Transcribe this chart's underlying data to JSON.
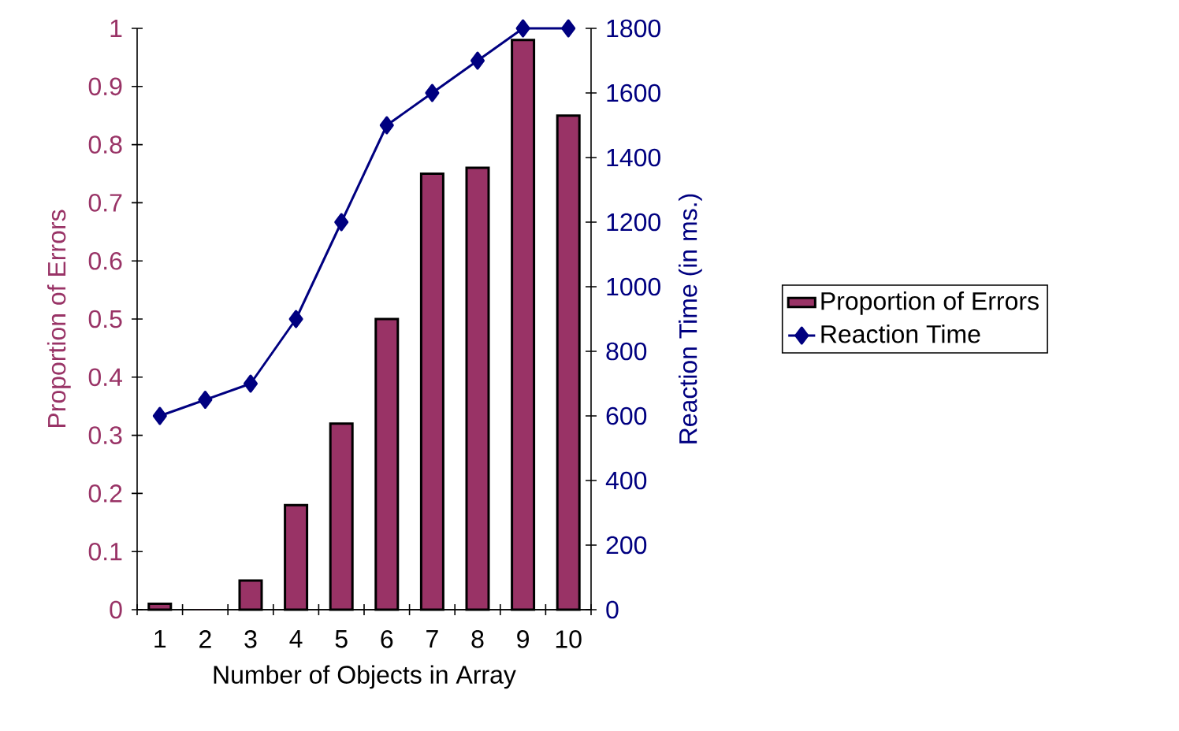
{
  "chart_data": {
    "type": "bar",
    "xlabel": "Number of Objects in Array",
    "ylabel": "Proportion of Errors",
    "y2label": "Reaction Time (in ms.)",
    "categories": [
      "1",
      "2",
      "3",
      "4",
      "5",
      "6",
      "7",
      "8",
      "9",
      "10"
    ],
    "series": [
      {
        "name": "Proportion of Errors",
        "color": "#993366",
        "values": [
          0.01,
          0,
          0.05,
          0.18,
          0.32,
          0.5,
          0.75,
          0.76,
          0.98,
          0.85
        ]
      },
      {
        "name": "Reaction Time",
        "type": "line",
        "axis": "y2",
        "color": "#000080",
        "marker": "diamond",
        "values": [
          600,
          650,
          700,
          900,
          1200,
          1500,
          1600,
          1700,
          1800,
          1800
        ]
      }
    ],
    "ylim": [
      0,
      1
    ],
    "yticks": [
      0,
      0.1,
      0.2,
      0.3,
      0.4,
      0.5,
      0.6,
      0.7,
      0.8,
      0.9,
      1
    ],
    "y2lim": [
      0,
      1800
    ],
    "y2ticks": [
      0,
      200,
      400,
      600,
      800,
      1000,
      1200,
      1400,
      1600,
      1800
    ],
    "legend": "right"
  }
}
